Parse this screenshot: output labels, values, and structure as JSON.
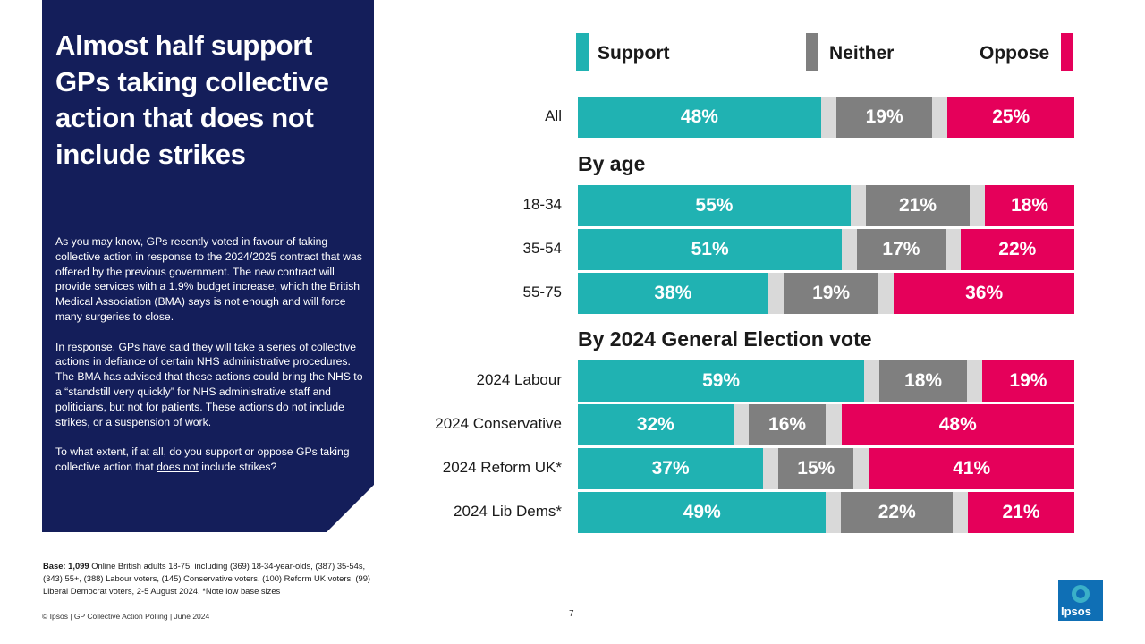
{
  "headline": "Almost half support GPs taking collective action that does not include strikes",
  "body": {
    "p1": "As you may know, GPs recently voted in favour of taking collective action in response to the 2024/2025 contract that was offered by the previous government. The new contract will provide services with a 1.9% budget increase, which the British Medical Association (BMA) says is not enough and will force many surgeries to close.",
    "p2": "In response, GPs have said they will take a series of collective actions in defiance of certain NHS administrative procedures. The BMA has advised that these actions could bring the NHS to a “standstill very quickly” for NHS administrative staff and politicians, but not for patients. These actions do not include strikes, or a suspension of work.",
    "q_pre": "To what extent, if at all, do you support or oppose GPs taking collective action that ",
    "q_emph": "does not",
    "q_post": " include strikes?"
  },
  "base": {
    "label": "Base: 1,099",
    "text": " Online British adults 18-75, including (369) 18-34-year-olds, (387) 35-54s, (343) 55+, (388) Labour voters, (145) Conservative voters, (100) Reform UK voters, (99) Liberal Democrat voters, 2-5 August 2024. *Note low base sizes"
  },
  "footer": "© Ipsos | GP Collective Action Polling | June 2024",
  "page_number": "7",
  "logo_text": "Ipsos",
  "colors": {
    "support": "#20b2b2",
    "neither": "#7f7f7f",
    "oppose": "#e5005a",
    "gap": "#d9d9d9",
    "panel": "#141e5a"
  },
  "chart_data": {
    "type": "bar",
    "orientation": "horizontal-stacked",
    "legend": [
      "Support",
      "Neither",
      "Oppose"
    ],
    "headings": {
      "age": "By age",
      "vote": "By 2024 General Election vote"
    },
    "categories": [
      "All",
      "18-34",
      "35-54",
      "55-75",
      "2024 Labour",
      "2024 Conservative",
      "2024 Reform UK*",
      "2024 Lib Dems*"
    ],
    "series": [
      {
        "name": "Support",
        "values": [
          48,
          55,
          51,
          38,
          59,
          32,
          37,
          49
        ]
      },
      {
        "name": "Neither",
        "values": [
          19,
          21,
          17,
          19,
          18,
          16,
          15,
          22
        ]
      },
      {
        "name": "Oppose",
        "values": [
          25,
          18,
          22,
          36,
          19,
          48,
          41,
          21
        ]
      }
    ],
    "value_labels": {
      "support": [
        "48%",
        "55%",
        "51%",
        "38%",
        "59%",
        "32%",
        "37%",
        "49%"
      ],
      "neither": [
        "19%",
        "21%",
        "17%",
        "19%",
        "18%",
        "16%",
        "15%",
        "22%"
      ],
      "oppose": [
        "25%",
        "18%",
        "22%",
        "36%",
        "19%",
        "48%",
        "41%",
        "21%"
      ]
    },
    "xlim": [
      0,
      100
    ]
  }
}
